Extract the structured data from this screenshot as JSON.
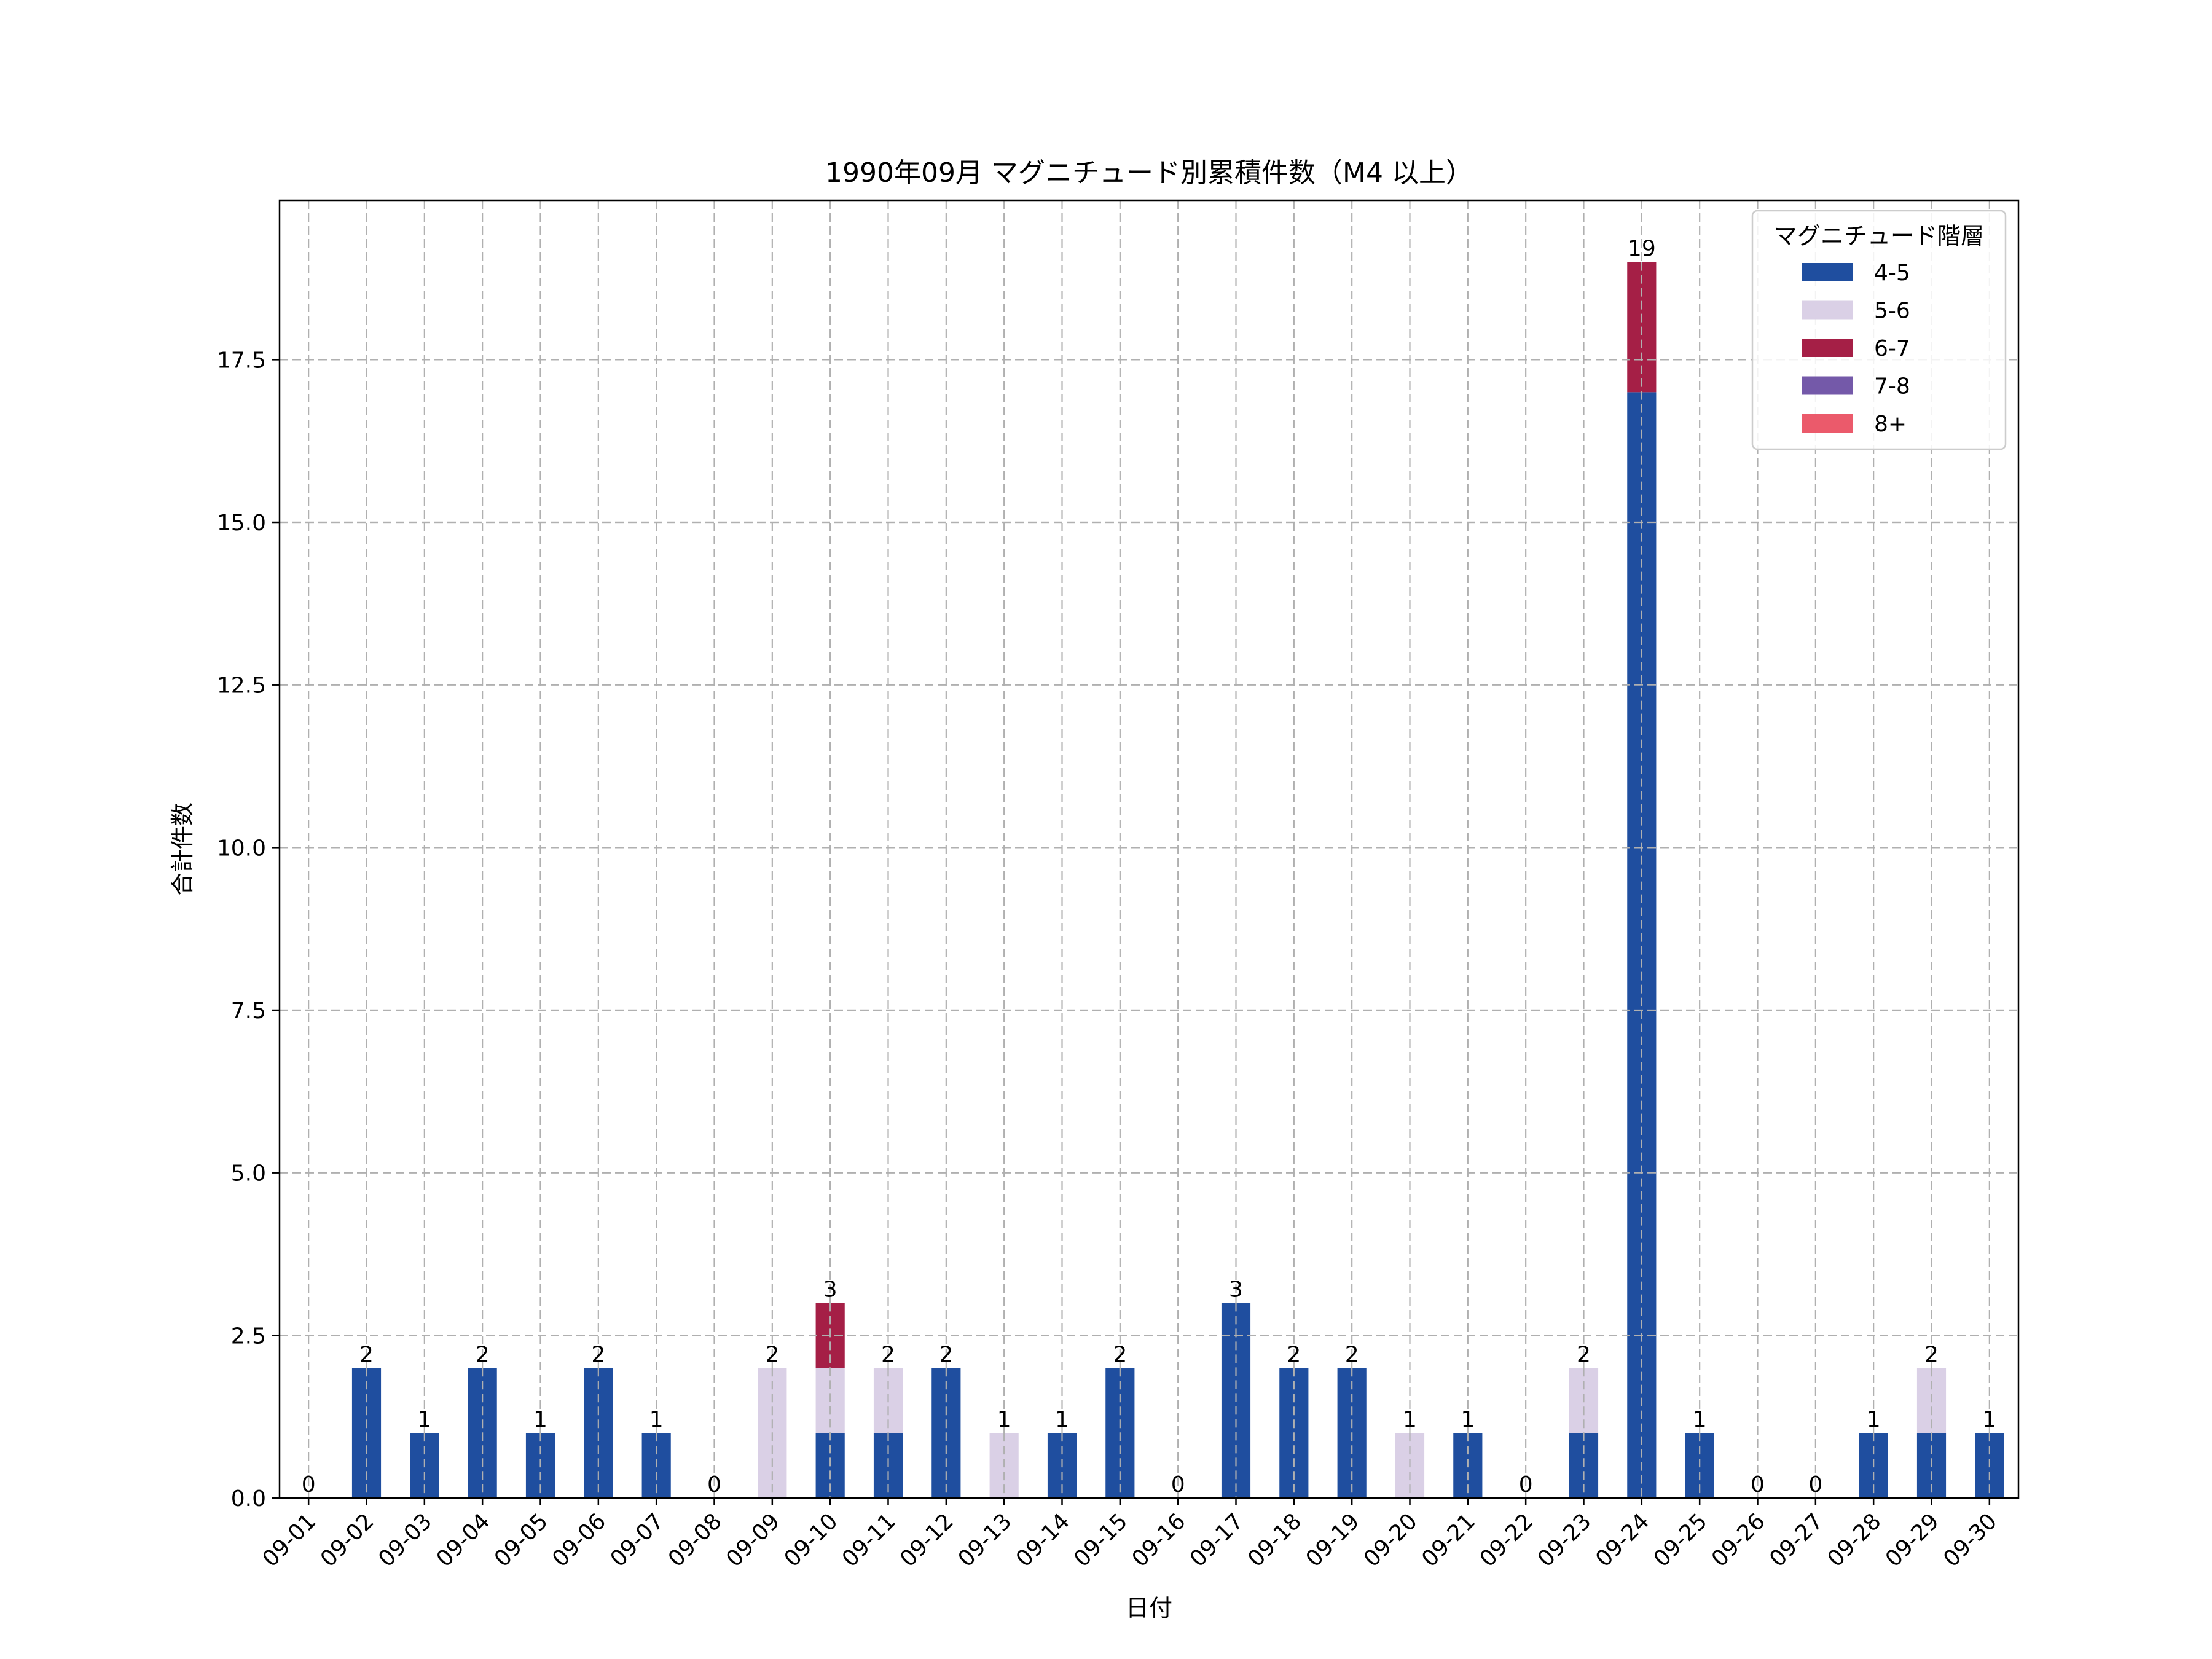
{
  "chart_data": {
    "type": "bar",
    "stacked": true,
    "title": "1990年09月 マグニチュード別累積件数（M4 以上）",
    "xlabel": "日付",
    "ylabel": "合計件数",
    "ylim": [
      0,
      19.95
    ],
    "yticks": [
      0.0,
      2.5,
      5.0,
      7.5,
      10.0,
      12.5,
      15.0,
      17.5
    ],
    "ytick_labels": [
      "0.0",
      "2.5",
      "5.0",
      "7.5",
      "10.0",
      "12.5",
      "15.0",
      "17.5"
    ],
    "grid": true,
    "legend": {
      "title": "マグニチュード階層",
      "placement": "top-right"
    },
    "categories": [
      "09-01",
      "09-02",
      "09-03",
      "09-04",
      "09-05",
      "09-06",
      "09-07",
      "09-08",
      "09-09",
      "09-10",
      "09-11",
      "09-12",
      "09-13",
      "09-14",
      "09-15",
      "09-16",
      "09-17",
      "09-18",
      "09-19",
      "09-20",
      "09-21",
      "09-22",
      "09-23",
      "09-24",
      "09-25",
      "09-26",
      "09-27",
      "09-28",
      "09-29",
      "09-30"
    ],
    "series": [
      {
        "name": "4-5",
        "color": "#1f4e9f",
        "values": [
          0,
          2,
          1,
          2,
          1,
          2,
          1,
          0,
          0,
          1,
          1,
          2,
          0,
          1,
          2,
          0,
          3,
          2,
          2,
          0,
          1,
          0,
          1,
          17,
          1,
          0,
          0,
          1,
          1,
          1
        ]
      },
      {
        "name": "5-6",
        "color": "#dad0e6",
        "values": [
          0,
          0,
          0,
          0,
          0,
          0,
          0,
          0,
          2,
          1,
          1,
          0,
          1,
          0,
          0,
          0,
          0,
          0,
          0,
          1,
          0,
          0,
          1,
          0,
          0,
          0,
          0,
          0,
          1,
          0
        ]
      },
      {
        "name": "6-7",
        "color": "#a51f46",
        "values": [
          0,
          0,
          0,
          0,
          0,
          0,
          0,
          0,
          0,
          1,
          0,
          0,
          0,
          0,
          0,
          0,
          0,
          0,
          0,
          0,
          0,
          0,
          0,
          2,
          0,
          0,
          0,
          0,
          0,
          0
        ]
      },
      {
        "name": "7-8",
        "color": "#7459a9",
        "values": [
          0,
          0,
          0,
          0,
          0,
          0,
          0,
          0,
          0,
          0,
          0,
          0,
          0,
          0,
          0,
          0,
          0,
          0,
          0,
          0,
          0,
          0,
          0,
          0,
          0,
          0,
          0,
          0,
          0,
          0
        ]
      },
      {
        "name": "8+",
        "color": "#eb5a6b",
        "values": [
          0,
          0,
          0,
          0,
          0,
          0,
          0,
          0,
          0,
          0,
          0,
          0,
          0,
          0,
          0,
          0,
          0,
          0,
          0,
          0,
          0,
          0,
          0,
          0,
          0,
          0,
          0,
          0,
          0,
          0
        ]
      }
    ],
    "totals": [
      0,
      2,
      1,
      2,
      1,
      2,
      1,
      0,
      2,
      3,
      2,
      2,
      1,
      1,
      2,
      0,
      3,
      2,
      2,
      1,
      1,
      0,
      2,
      19,
      1,
      0,
      0,
      1,
      2,
      1
    ]
  }
}
